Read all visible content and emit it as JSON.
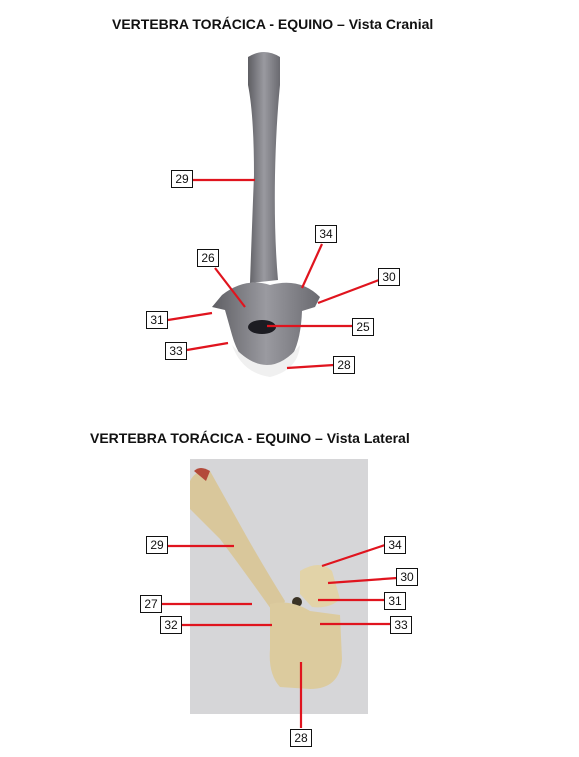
{
  "titles": {
    "cranial": "VERTEBRA TORÁCICA - EQUINO – Vista Cranial",
    "lateral": "VERTEBRA TORÁCICA - EQUINO – Vista Lateral"
  },
  "cranial_labels": {
    "l29": "29",
    "l34": "34",
    "l26": "26",
    "l30": "30",
    "l31": "31",
    "l25": "25",
    "l33": "33",
    "l28": "28"
  },
  "lateral_labels": {
    "l29": "29",
    "l34": "34",
    "l30": "30",
    "l27": "27",
    "l31": "31",
    "l32": "32",
    "l33": "33",
    "l28": "28"
  },
  "colors": {
    "leader_line": "#e0141e",
    "bone_cranial": "#7d7d82",
    "bone_lateral": "#d9c79b",
    "background_lateral": "#d6d6d8"
  }
}
